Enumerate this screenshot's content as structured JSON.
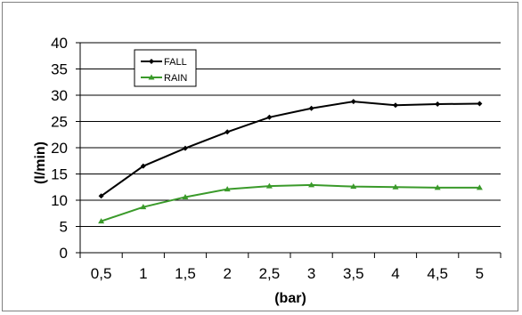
{
  "chart_data": {
    "type": "line",
    "x": [
      "0,5",
      "1",
      "1,5",
      "2",
      "2,5",
      "3",
      "3,5",
      "4",
      "4,5",
      "5"
    ],
    "series": [
      {
        "name": "FALL",
        "color": "#000000",
        "values": [
          10.8,
          16.5,
          19.9,
          23.0,
          25.8,
          27.5,
          28.8,
          28.1,
          28.3,
          28.4
        ]
      },
      {
        "name": "RAIN",
        "color": "#3a9a2a",
        "values": [
          6.0,
          8.7,
          10.6,
          12.1,
          12.7,
          12.9,
          12.6,
          12.5,
          12.4,
          12.4
        ]
      }
    ],
    "xlabel": "(bar)",
    "ylabel": "(l/min)",
    "ylim": [
      0,
      40
    ],
    "yticks": [
      "0",
      "5",
      "10",
      "15",
      "20",
      "25",
      "30",
      "35",
      "40"
    ],
    "grid": true,
    "legend": "top-left"
  }
}
